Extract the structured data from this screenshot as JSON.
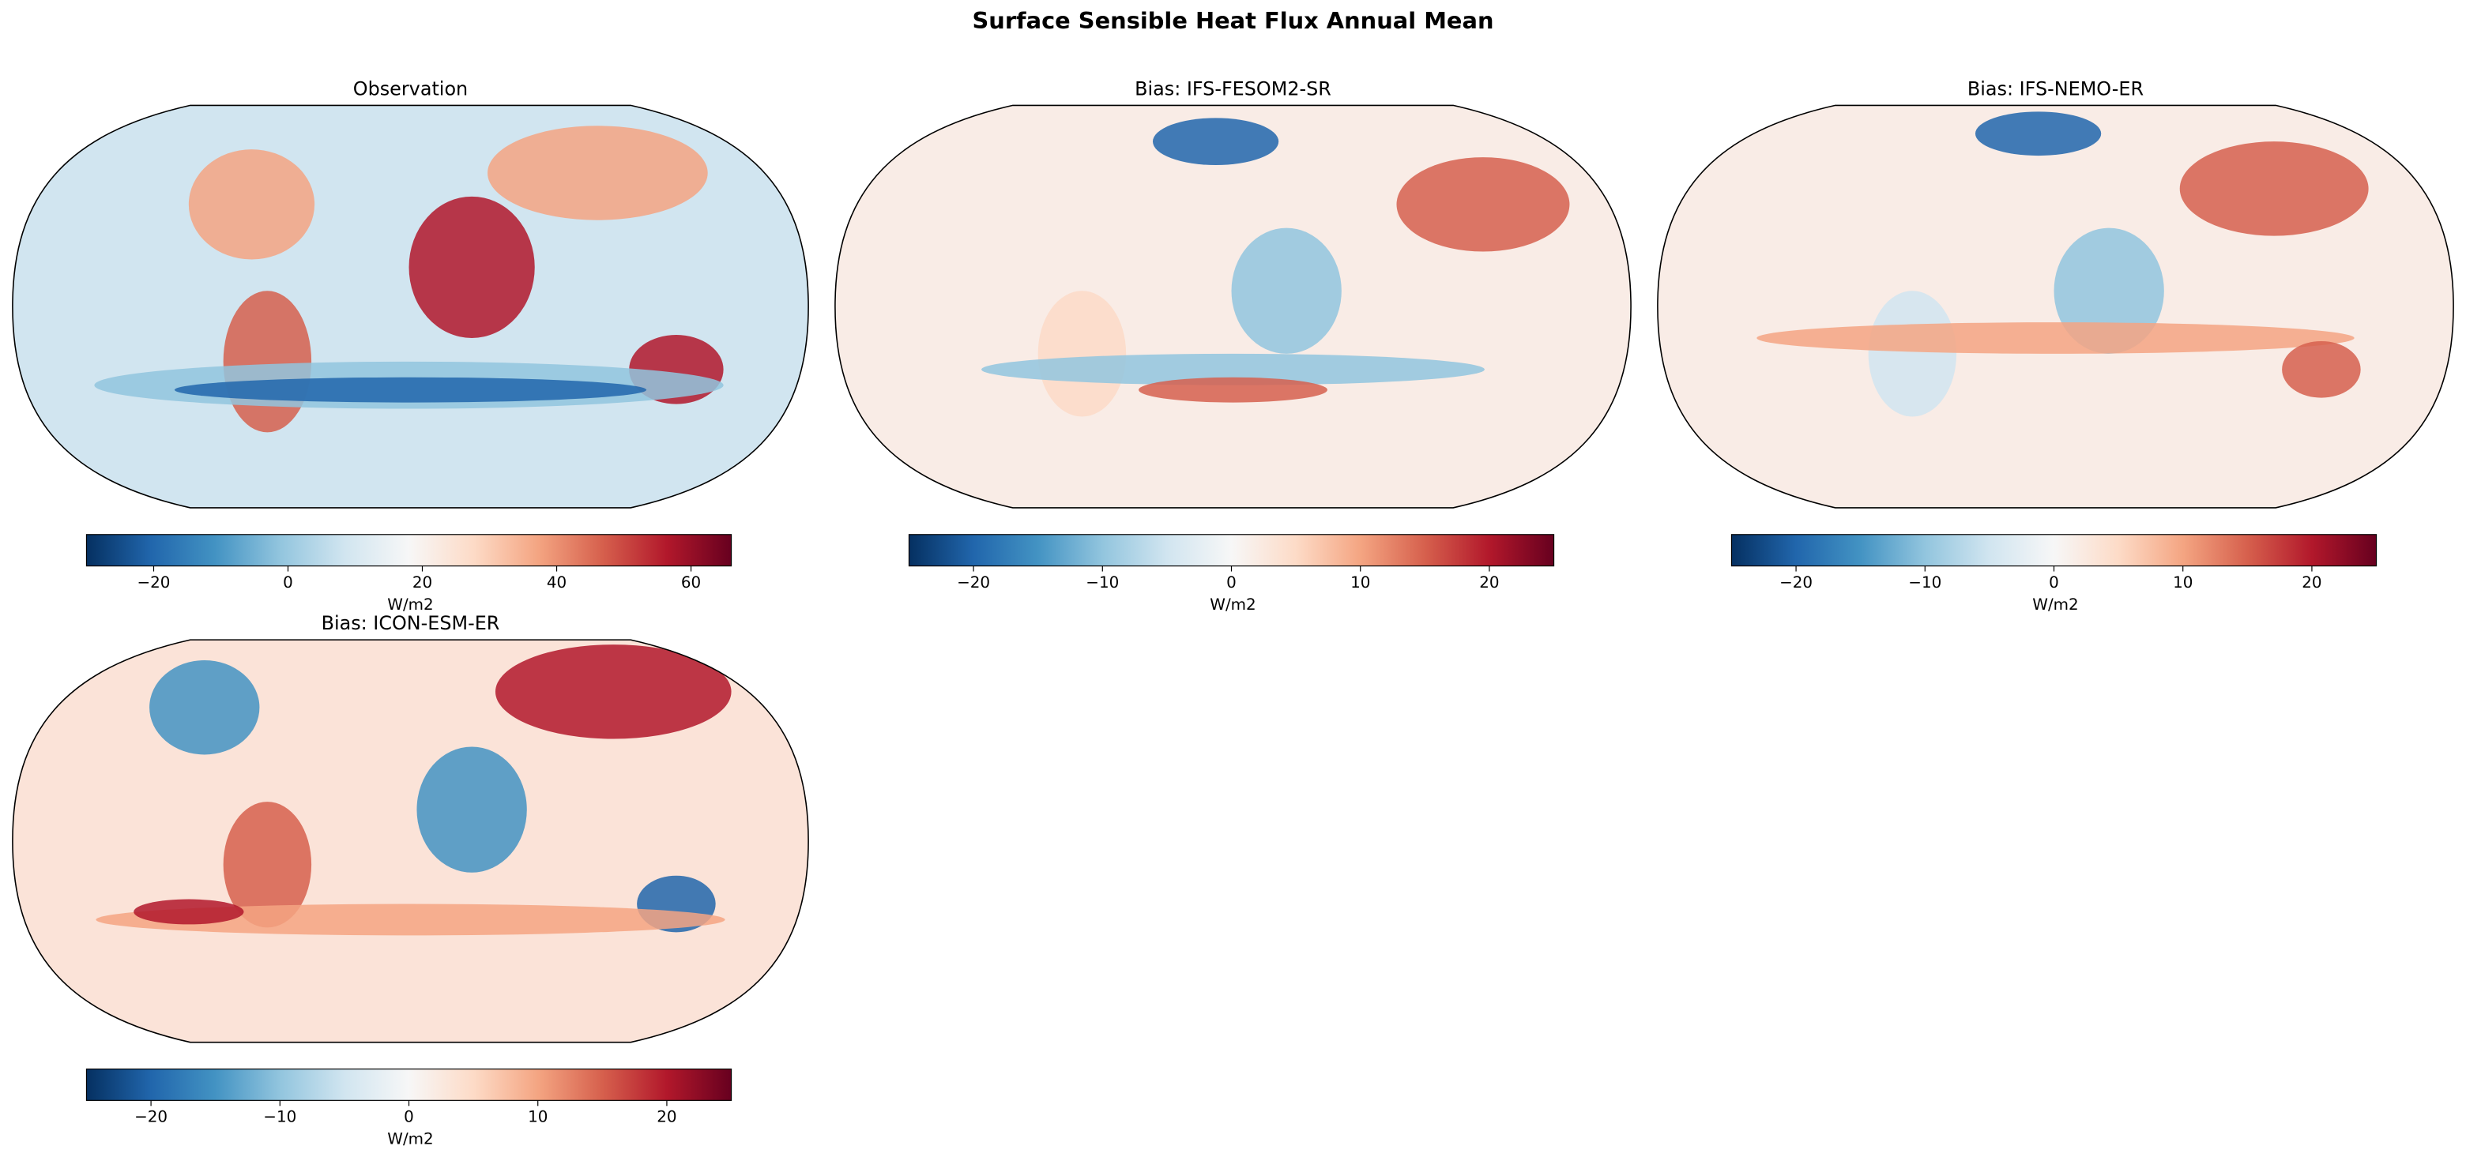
{
  "title": "Surface Sensible Heat Flux Annual Mean",
  "colormap": [
    "#053061",
    "#2166ac",
    "#4393c3",
    "#92c5de",
    "#d1e5f0",
    "#f7f7f7",
    "#fddbc7",
    "#f4a582",
    "#d6604d",
    "#b2182b",
    "#67001f"
  ],
  "panels": [
    {
      "title": "Observation",
      "colorbar": {
        "label": "W/m2",
        "lim": [
          -30,
          66
        ],
        "ticks": [
          {
            "value": -20,
            "label": "−20"
          },
          0,
          20,
          40,
          60
        ]
      }
    },
    {
      "title": "Bias: IFS-FESOM2-SR",
      "colorbar": {
        "label": "W/m2",
        "lim": [
          -25,
          25
        ],
        "ticks": [
          {
            "value": -20,
            "label": "−20"
          },
          {
            "value": -10,
            "label": "−10"
          },
          0,
          10,
          20
        ]
      }
    },
    {
      "title": "Bias: IFS-NEMO-ER",
      "colorbar": {
        "label": "W/m2",
        "lim": [
          -25,
          25
        ],
        "ticks": [
          {
            "value": -20,
            "label": "−20"
          },
          {
            "value": -10,
            "label": "−10"
          },
          0,
          10,
          20
        ]
      }
    },
    {
      "title": "Bias: ICON-ESM-ER",
      "colorbar": {
        "label": "W/m2",
        "lim": [
          -25,
          25
        ],
        "ticks": [
          {
            "value": -20,
            "label": "−20"
          },
          {
            "value": -10,
            "label": "−10"
          },
          0,
          10,
          20
        ]
      }
    }
  ]
}
